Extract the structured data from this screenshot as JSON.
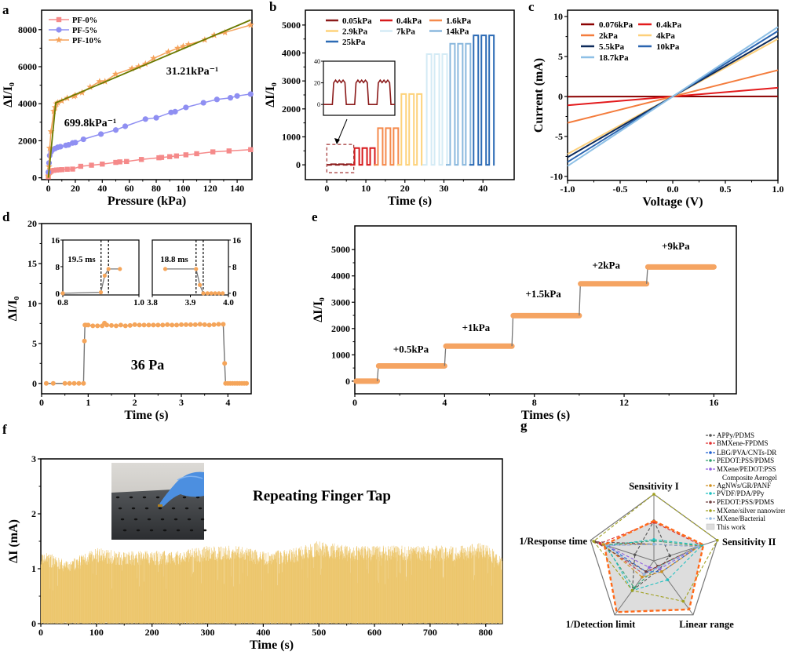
{
  "panel_labels": [
    "a",
    "b",
    "c",
    "d",
    "e",
    "f",
    "g"
  ],
  "chart_data": [
    {
      "panel": "a",
      "type": "line",
      "xlabel": "Pressure (kPa)",
      "ylabel": "ΔI/I₀",
      "xlim": [
        -5,
        151
      ],
      "ylim": [
        -100,
        9050
      ],
      "xticks": [
        "0",
        "20",
        "40",
        "60",
        "80",
        "100",
        "120",
        "140"
      ],
      "yticks": [
        "0",
        "2000",
        "4000",
        "6000",
        "8000"
      ],
      "legend_position": "top-left",
      "series": [
        {
          "name": "PF-0%",
          "color": "#f58a8a",
          "marker": "square",
          "x": [
            0,
            1,
            2,
            4,
            6,
            8,
            10,
            14,
            18,
            24,
            32,
            40,
            50,
            53,
            58,
            69,
            82,
            84,
            90,
            95,
            102,
            110,
            122,
            134,
            150
          ],
          "y": [
            50,
            300,
            350,
            400,
            420,
            430,
            440,
            460,
            470,
            620,
            680,
            740,
            830,
            860,
            880,
            990,
            1080,
            1100,
            1140,
            1180,
            1240,
            1300,
            1400,
            1450,
            1520
          ]
        },
        {
          "name": "PF-5%",
          "color": "#8f8ff2",
          "marker": "circle",
          "x": [
            0,
            0.5,
            1,
            2,
            3,
            5,
            7,
            9,
            13,
            15,
            18,
            20,
            26,
            39,
            50,
            57,
            72,
            80,
            91,
            94,
            102,
            115,
            125,
            135,
            140,
            150
          ],
          "y": [
            300,
            800,
            1200,
            1400,
            1500,
            1580,
            1650,
            1680,
            1750,
            1780,
            1880,
            1900,
            2080,
            2360,
            2580,
            2780,
            3170,
            3240,
            3530,
            3570,
            3800,
            4050,
            4230,
            4320,
            4420,
            4520
          ]
        },
        {
          "name": "PF-10%",
          "color": "#f5a25a",
          "marker": "star",
          "x": [
            0,
            0.5,
            1,
            2,
            4,
            5,
            6,
            7,
            10,
            14,
            19,
            20,
            25,
            31,
            38,
            42,
            50,
            62,
            67,
            72,
            78,
            89,
            96,
            100,
            104,
            116,
            123,
            131,
            150
          ],
          "y": [
            100,
            600,
            1600,
            2500,
            3600,
            3800,
            4000,
            4050,
            4150,
            4300,
            4400,
            4450,
            4600,
            4900,
            5200,
            5200,
            5600,
            5900,
            6000,
            6150,
            6450,
            6800,
            7000,
            7100,
            7200,
            7450,
            7700,
            7850,
            8250
          ]
        }
      ],
      "fit_lines": {
        "color": "#6b7a00",
        "x": [
          0,
          5.5,
          150
        ],
        "y": [
          0,
          4050,
          8520
        ]
      },
      "annotations": [
        "699.8kPa⁻¹",
        "31.21kPa⁻¹"
      ]
    },
    {
      "panel": "b",
      "type": "line",
      "xlabel": "Time (s)",
      "ylabel": "ΔI/I₀",
      "xlim": [
        -5.5,
        48
      ],
      "ylim": [
        -530,
        5530
      ],
      "xticks": [
        "0",
        "10",
        "20",
        "30",
        "40"
      ],
      "yticks": [
        "0",
        "1000",
        "2000",
        "3000",
        "4000",
        "5000"
      ],
      "legend_position": "top",
      "series": [
        {
          "name": "0.05kPa",
          "color": "#8b1a1a",
          "level": 20,
          "t_range": [
            0,
            6
          ]
        },
        {
          "name": "0.4kPa",
          "color": "#d7191c",
          "level": 600,
          "t_range": [
            6,
            12
          ]
        },
        {
          "name": "1.6kPa",
          "color": "#f58a4c",
          "level": 1310,
          "t_range": [
            12,
            18
          ]
        },
        {
          "name": "2.9kPa",
          "color": "#fdd27a",
          "level": 2530,
          "t_range": [
            18,
            24.5
          ]
        },
        {
          "name": "7kPa",
          "color": "#d4ebf5",
          "level": 3960,
          "t_range": [
            24.5,
            30.5
          ]
        },
        {
          "name": "14kPa",
          "color": "#8ab8dd",
          "level": 4330,
          "t_range": [
            30.5,
            36.5
          ]
        },
        {
          "name": "25kPa",
          "color": "#2c6bb5",
          "level": 4630,
          "t_range": [
            36.5,
            43
          ]
        }
      ],
      "inset": {
        "ylim": [
          -10,
          40
        ],
        "yticks": [
          "0",
          "20",
          "40"
        ],
        "xlim": [
          0,
          6.4
        ],
        "level": 21
      }
    },
    {
      "panel": "c",
      "type": "line",
      "xlabel": "Voltage (V)",
      "ylabel": "Current (mA)",
      "xlim": [
        -1,
        1
      ],
      "ylim": [
        -10.5,
        10.8
      ],
      "xticks": [
        "-1.0",
        "-0.5",
        "0.0",
        "0.5",
        "1.0"
      ],
      "yticks": [
        "-10",
        "-5",
        "0",
        "5",
        "10"
      ],
      "legend_position": "top-left",
      "series": [
        {
          "name": "0.076kPa",
          "color": "#8b0000",
          "slope": 0.02
        },
        {
          "name": "0.4kPa",
          "color": "#e31a1c",
          "slope": 1.1
        },
        {
          "name": "2kPa",
          "color": "#f47c3c",
          "slope": 3.3
        },
        {
          "name": "4kPa",
          "color": "#fdd07a",
          "slope": 7.2
        },
        {
          "name": "5.5kPa",
          "color": "#0d2a5a",
          "slope": 7.6
        },
        {
          "name": "10kPa",
          "color": "#2b65b0",
          "slope": 8.2
        },
        {
          "name": "18.7kPa",
          "color": "#8ec0e6",
          "slope": 8.7
        }
      ]
    },
    {
      "panel": "d",
      "type": "line",
      "xlabel": "Time (s)",
      "ylabel": "ΔI/I₀",
      "xlim": [
        0,
        4.5
      ],
      "ylim": [
        -1.3,
        20
      ],
      "xticks": [
        "0",
        "1",
        "2",
        "3",
        "4"
      ],
      "yticks": [
        "0",
        "5",
        "10",
        "15",
        "20"
      ],
      "annotation": "36 Pa",
      "point_color": "#f5a55a",
      "line_color": "#777777",
      "x": [
        0.1,
        0.25,
        0.5,
        0.6,
        0.7,
        0.8,
        0.9,
        0.92,
        0.93,
        0.95,
        1.0,
        1.1,
        1.2,
        1.3,
        1.35,
        1.4,
        1.5,
        1.6,
        1.7,
        1.8,
        1.9,
        2.0,
        2.1,
        2.2,
        2.3,
        2.4,
        2.5,
        2.6,
        2.7,
        2.8,
        2.9,
        3.0,
        3.1,
        3.2,
        3.3,
        3.4,
        3.5,
        3.6,
        3.7,
        3.8,
        3.9,
        3.93,
        3.95,
        4.0,
        4.05,
        4.1,
        4.15,
        4.2,
        4.25,
        4.3,
        4.35,
        4.4
      ],
      "y": [
        0,
        0,
        0,
        0,
        0,
        0,
        0,
        5.3,
        7.3,
        7.3,
        7.3,
        7.2,
        7.2,
        7.2,
        7.55,
        7.3,
        7.25,
        7.2,
        7.3,
        7.2,
        7.25,
        7.35,
        7.3,
        7.3,
        7.3,
        7.3,
        7.3,
        7.3,
        7.35,
        7.3,
        7.3,
        7.35,
        7.35,
        7.35,
        7.35,
        7.4,
        7.35,
        7.3,
        7.35,
        7.4,
        7.4,
        2.5,
        0,
        0,
        0,
        0,
        0,
        0,
        0,
        0,
        0,
        0
      ],
      "insets": [
        {
          "xlim": [
            0.8,
            1.0
          ],
          "ylim": [
            -0.5,
            16
          ],
          "xticks": [
            "0.8",
            "1.0"
          ],
          "yticks": [
            "0",
            "8",
            "16"
          ],
          "yside": "left",
          "label": "19.5 ms",
          "markers": [
            0.9005,
            0.92
          ],
          "x": [
            0.8,
            0.9,
            0.91,
            0.92,
            0.95
          ],
          "y": [
            0,
            0.3,
            5.3,
            7.3,
            7.3
          ]
        },
        {
          "xlim": [
            3.8,
            4.0
          ],
          "ylim": [
            -0.5,
            16
          ],
          "xticks": [
            "3.8",
            "3.9",
            "4.0"
          ],
          "yticks": [
            "0",
            "8",
            "16"
          ],
          "yside": "right",
          "label": "18.8 ms",
          "markers": [
            3.915,
            3.9338
          ],
          "x": [
            3.834,
            3.915,
            3.925,
            3.934,
            3.945,
            3.955,
            3.965,
            3.975,
            3.985
          ],
          "y": [
            7.3,
            7.3,
            2.5,
            0,
            0,
            0,
            0,
            0,
            0
          ]
        }
      ]
    },
    {
      "panel": "e",
      "type": "line",
      "xlabel": "Times (s)",
      "ylabel": "ΔI/I₀",
      "xlim": [
        0,
        17
      ],
      "ylim": [
        -480,
        5900
      ],
      "xticks": [
        "0",
        "4",
        "8",
        "12",
        "16"
      ],
      "yticks": [
        "0",
        "1000",
        "2000",
        "3000",
        "4000",
        "5000"
      ],
      "point_color": "#f5a462",
      "line_color": "#777777",
      "steps": [
        {
          "t": [
            0,
            1
          ],
          "v": 0
        },
        {
          "t": [
            1,
            4
          ],
          "v": 580
        },
        {
          "t": [
            4,
            7
          ],
          "v": 1330
        },
        {
          "t": [
            7,
            10
          ],
          "v": 2490
        },
        {
          "t": [
            10,
            13
          ],
          "v": 3700
        },
        {
          "t": [
            13,
            16
          ],
          "v": 4340
        }
      ],
      "annotations": [
        {
          "text": "+0.5kPa",
          "x": 2.5,
          "y": 1090
        },
        {
          "text": "+1kPa",
          "x": 5.4,
          "y": 1900
        },
        {
          "text": "+1.5kPa",
          "x": 8.4,
          "y": 3180
        },
        {
          "text": "+2kPa",
          "x": 11.2,
          "y": 4280
        },
        {
          "text": "+9kPa",
          "x": 14.3,
          "y": 5000
        }
      ]
    },
    {
      "panel": "f",
      "type": "area",
      "xlabel": "Time (s)",
      "ylabel": "ΔI (mA)",
      "xlim": [
        0,
        830
      ],
      "ylim": [
        0,
        3
      ],
      "xticks": [
        "0",
        "100",
        "200",
        "300",
        "400",
        "500",
        "600",
        "700",
        "800"
      ],
      "yticks": [
        "0",
        "1",
        "2",
        "3"
      ],
      "color": "#ecc56a",
      "annotation": "Repeating Finger Tap",
      "peak_values": {
        "x": [
          0,
          50,
          100,
          150,
          200,
          250,
          300,
          350,
          400,
          450,
          500,
          550,
          600,
          650,
          700,
          750,
          800,
          830
        ],
        "y": [
          1.35,
          1.15,
          1.38,
          1.32,
          1.33,
          1.33,
          1.42,
          1.42,
          1.32,
          1.36,
          1.52,
          1.42,
          1.42,
          1.42,
          1.42,
          1.42,
          1.48,
          1.2
        ]
      }
    },
    {
      "panel": "g",
      "type": "radar",
      "axes": [
        "Sensitivity I",
        "Sensitivity II",
        "Linear range",
        "1/Detection limit",
        "1/Response time"
      ],
      "series": [
        {
          "name": "APPy/PDMS",
          "color": "#555555",
          "values": [
            0.6,
            0.25,
            0.15,
            0.55,
            0.3
          ]
        },
        {
          "name": "BMXene-FPDMS",
          "color": "#e03030",
          "values": [
            0.58,
            0.75,
            0.1,
            0.25,
            0.85
          ]
        },
        {
          "name": "LBG/PVA/CNTs-DR",
          "color": "#2060d0",
          "values": [
            0.25,
            0.7,
            0.2,
            0.2,
            0.75
          ]
        },
        {
          "name": "PEDOT:PSS/PDMS",
          "color": "#30a070",
          "values": [
            0.3,
            0.73,
            0.1,
            0.5,
            0.78
          ]
        },
        {
          "name": "MXene/PEDOT:PSS",
          "name_line2": "Composite Aerogel",
          "color": "#9060e0",
          "values": [
            0.25,
            0.7,
            0.15,
            0.12,
            0.75
          ]
        },
        {
          "name": "AgNWs/GR/PANF",
          "color": "#d09020",
          "values": [
            0.25,
            0.72,
            0.2,
            0.3,
            0.8
          ]
        },
        {
          "name": "PVDF/PDA/PPy",
          "color": "#20c0c0",
          "values": [
            0.32,
            0.76,
            0.35,
            0.55,
            0.75
          ]
        },
        {
          "name": "PEDOT:PSS/PDMS",
          "color": "#704040",
          "values": [
            0.25,
            0.7,
            0.1,
            0.2,
            0.93
          ]
        },
        {
          "name": "MXene/silver nanowires",
          "color": "#a0a020",
          "values": [
            1.0,
            1.0,
            0.75,
            0.55,
            0.95
          ]
        },
        {
          "name": "MXene/Bacterial",
          "color": "#90b8e0",
          "values": [
            0.25,
            0.7,
            0.12,
            0.25,
            0.75
          ]
        }
      ],
      "this_work": {
        "name": "This work",
        "fill": "#dddddd",
        "stroke": "#ff6a1a",
        "values": [
          0.6,
          0.78,
          0.9,
          0.95,
          0.78
        ]
      }
    }
  ]
}
